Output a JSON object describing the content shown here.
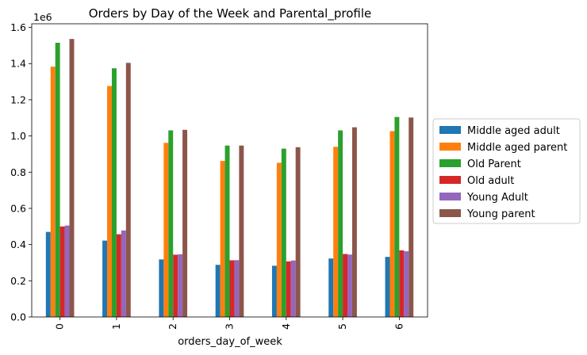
{
  "chart_data": {
    "type": "bar",
    "title": "Orders by Day of the Week and Parental_profile",
    "xlabel": "orders_day_of_week",
    "ylabel": "",
    "y_scale_label": "1e6",
    "y_scale": 1000000,
    "ylim": [
      0,
      1.62
    ],
    "yticks": [
      "0.0",
      "0.2",
      "0.4",
      "0.6",
      "0.8",
      "1.0",
      "1.2",
      "1.4",
      "1.6"
    ],
    "categories": [
      "0",
      "1",
      "2",
      "3",
      "4",
      "5",
      "6"
    ],
    "legend_placement": "center-right outside",
    "grid": false,
    "series": [
      {
        "name": "Middle aged adult",
        "color": "#1f77b4",
        "values": [
          470000,
          422000,
          318000,
          288000,
          283000,
          323000,
          332000
        ]
      },
      {
        "name": "Middle aged parent",
        "color": "#ff7f0e",
        "values": [
          1383000,
          1276000,
          962000,
          862000,
          852000,
          940000,
          1027000
        ]
      },
      {
        "name": "Old Parent",
        "color": "#2ca02c",
        "values": [
          1515000,
          1374000,
          1031000,
          947000,
          930000,
          1031000,
          1105000
        ]
      },
      {
        "name": "Old adult",
        "color": "#d62728",
        "values": [
          500000,
          457000,
          344000,
          313000,
          307000,
          348000,
          368000
        ]
      },
      {
        "name": "Young Adult",
        "color": "#9467bd",
        "values": [
          505000,
          478000,
          346000,
          314000,
          312000,
          345000,
          363000
        ]
      },
      {
        "name": "Young parent",
        "color": "#8c564b",
        "values": [
          1536000,
          1404000,
          1034000,
          947000,
          938000,
          1048000,
          1102000
        ]
      }
    ]
  }
}
